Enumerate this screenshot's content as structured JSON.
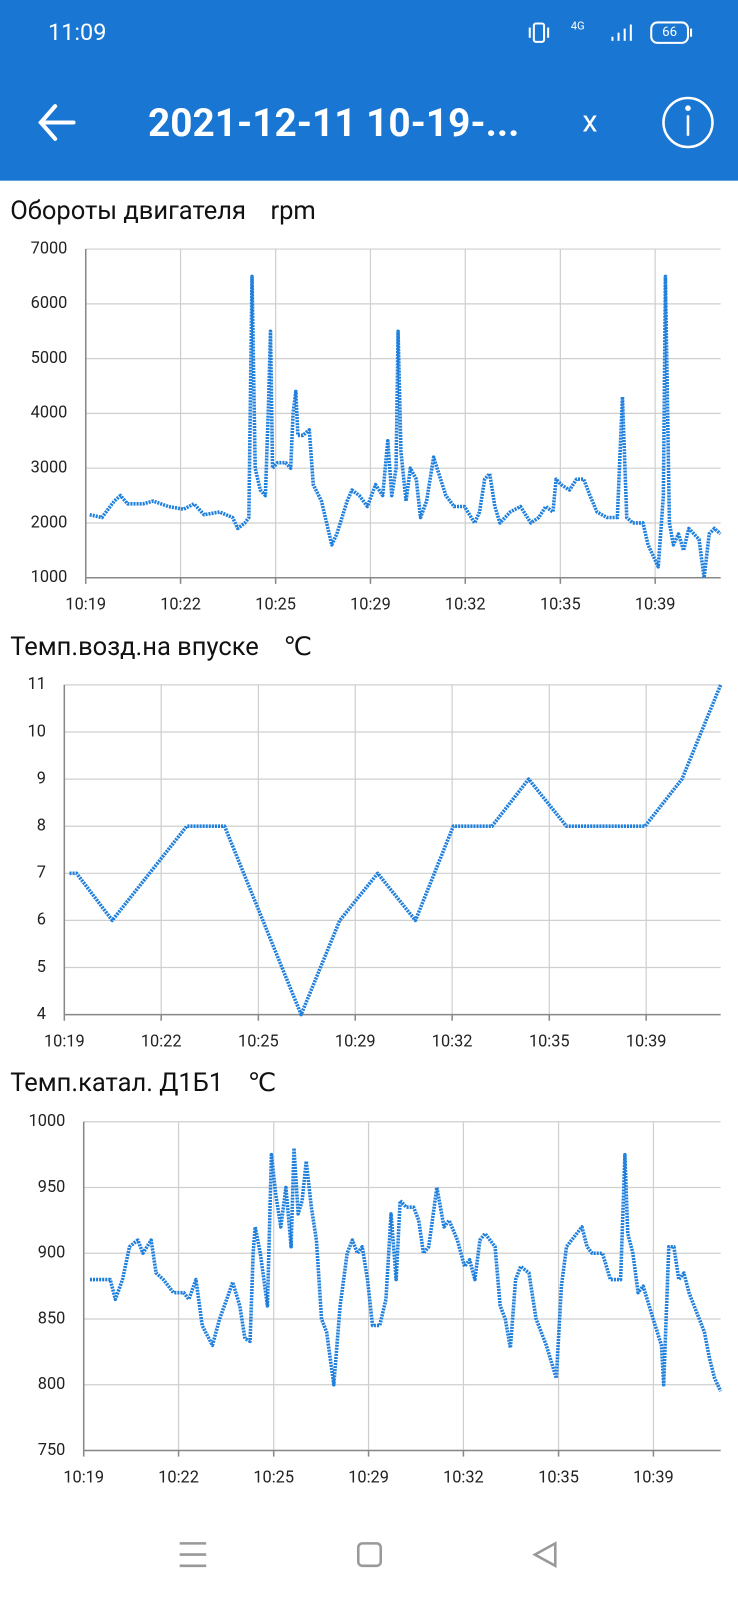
{
  "status_bar": {
    "time": "11:09",
    "network": "4G",
    "battery": "66"
  },
  "header": {
    "title": "2021-12-11 10-19-...",
    "close": "x"
  },
  "chart_data": [
    {
      "type": "line",
      "title": "Обороты двигателя",
      "unit": "rpm",
      "color": "#1e7fdc",
      "grid": true,
      "x": [
        619.14,
        619.57,
        620.0,
        620.22,
        620.47,
        621.01,
        621.37,
        621.9,
        622.44,
        622.8,
        623.16,
        623.7,
        624.16,
        624.34,
        624.59,
        624.73,
        624.84,
        624.95,
        625.13,
        625.31,
        625.42,
        625.49,
        625.56,
        625.74,
        626.02,
        626.2,
        626.28,
        626.38,
        626.45,
        626.63,
        626.85,
        626.99,
        627.28,
        627.46,
        627.64,
        627.82,
        628.18,
        628.35,
        628.61,
        628.89,
        629.18,
        629.43,
        629.61,
        629.75,
        629.9,
        629.97,
        630.07,
        630.25,
        630.4,
        630.61,
        630.76,
        630.97,
        631.22,
        631.4,
        631.65,
        631.94,
        632.3,
        632.66,
        632.83,
        633.01,
        633.19,
        633.37,
        633.55,
        633.91,
        634.27,
        634.63,
        634.91,
        635.16,
        635.41,
        635.52,
        635.7,
        635.99,
        636.24,
        636.49,
        636.71,
        636.96,
        637.31,
        637.67,
        637.85,
        638.0,
        638.21,
        638.57,
        638.75,
        638.93,
        639.11,
        639.29,
        639.36,
        639.5,
        639.64,
        639.82,
        640.0,
        640.18,
        640.36,
        640.54,
        640.72,
        640.9,
        641.08,
        641.29
      ],
      "values": [
        2150,
        2100,
        2400,
        2500,
        2350,
        2350,
        2400,
        2300,
        2250,
        2350,
        2150,
        2200,
        2100,
        1900,
        2000,
        2100,
        6500,
        3000,
        2600,
        2500,
        4200,
        5500,
        3000,
        3100,
        3100,
        3000,
        4000,
        4400,
        3600,
        3600,
        3700,
        2700,
        2400,
        2000,
        1600,
        1800,
        2400,
        2600,
        2500,
        2300,
        2700,
        2500,
        3500,
        2500,
        3000,
        5500,
        3300,
        2400,
        3000,
        2800,
        2100,
        2400,
        3200,
        2900,
        2500,
        2300,
        2300,
        2000,
        2200,
        2800,
        2900,
        2300,
        2000,
        2200,
        2300,
        2000,
        2100,
        2300,
        2200,
        2800,
        2700,
        2600,
        2800,
        2800,
        2500,
        2200,
        2100,
        2100,
        4300,
        2100,
        2000,
        2000,
        1600,
        1400,
        1200,
        2500,
        6500,
        2000,
        1600,
        1800,
        1500,
        1900,
        1800,
        1700,
        1000,
        1800,
        1900,
        1800
      ],
      "xlim": [
        619,
        641.3
      ],
      "xticks": [
        {
          "value": 619,
          "label": "10:19"
        },
        {
          "value": 622.33,
          "label": "10:22"
        },
        {
          "value": 625.67,
          "label": "10:25"
        },
        {
          "value": 629,
          "label": "10:29"
        },
        {
          "value": 632.33,
          "label": "10:32"
        },
        {
          "value": 635.67,
          "label": "10:35"
        },
        {
          "value": 639,
          "label": "10:39"
        }
      ],
      "ylim": [
        1000,
        7000
      ],
      "yticks": [
        1000,
        2000,
        3000,
        4000,
        5000,
        6000,
        7000
      ]
    },
    {
      "type": "line",
      "title": "Темп.возд.на впуске",
      "unit": "℃",
      "color": "#1e7fdc",
      "grid": true,
      "x": [
        619.18,
        619.42,
        620.65,
        623.21,
        624.51,
        627.14,
        628.47,
        629.77,
        631.07,
        632.37,
        633.7,
        634.96,
        636.26,
        638.96,
        640.23,
        641.56
      ],
      "values": [
        7,
        7,
        6,
        8,
        8,
        4,
        6,
        7,
        6,
        8,
        8,
        9,
        8,
        8,
        9,
        11
      ],
      "xlim": [
        619,
        641.56
      ],
      "xticks": [
        {
          "value": 619,
          "label": "10:19"
        },
        {
          "value": 622.33,
          "label": "10:22"
        },
        {
          "value": 625.67,
          "label": "10:25"
        },
        {
          "value": 629,
          "label": "10:29"
        },
        {
          "value": 632.33,
          "label": "10:32"
        },
        {
          "value": 635.67,
          "label": "10:35"
        },
        {
          "value": 639,
          "label": "10:39"
        }
      ],
      "ylim": [
        4,
        11
      ],
      "yticks": [
        4,
        5,
        6,
        7,
        8,
        9,
        10,
        11
      ]
    },
    {
      "type": "line",
      "title": "Темп.катал. Д1Б1",
      "unit": "℃",
      "color": "#1e7fdc",
      "grid": true,
      "x": [
        619.22,
        619.93,
        620.11,
        620.36,
        620.61,
        620.9,
        621.08,
        621.37,
        621.54,
        621.8,
        622.15,
        622.51,
        622.69,
        622.94,
        623.16,
        623.52,
        623.77,
        624.02,
        624.23,
        624.48,
        624.66,
        624.84,
        624.95,
        625.02,
        625.2,
        625.45,
        625.59,
        625.74,
        625.92,
        626.1,
        626.28,
        626.38,
        626.53,
        626.67,
        626.81,
        626.99,
        627.17,
        627.35,
        627.53,
        627.78,
        628.0,
        628.25,
        628.43,
        628.61,
        628.78,
        628.96,
        629.14,
        629.39,
        629.61,
        629.79,
        629.97,
        630.11,
        630.33,
        630.58,
        630.76,
        630.93,
        631.11,
        631.4,
        631.65,
        631.83,
        632.12,
        632.37,
        632.55,
        632.73,
        632.91,
        633.09,
        633.44,
        633.62,
        633.8,
        633.98,
        634.16,
        634.34,
        634.63,
        634.88,
        635.24,
        635.59,
        635.77,
        635.95,
        636.13,
        636.49,
        636.67,
        636.85,
        637.21,
        637.49,
        637.85,
        638.0,
        638.1,
        638.28,
        638.46,
        638.64,
        638.99,
        639.28,
        639.36,
        639.54,
        639.72,
        639.89,
        640.07,
        640.25,
        640.43,
        640.61,
        640.79,
        640.97,
        641.15,
        641.36
      ],
      "values": [
        880,
        880,
        865,
        880,
        905,
        910,
        900,
        910,
        885,
        880,
        870,
        870,
        865,
        880,
        845,
        830,
        850,
        865,
        878,
        860,
        835,
        833,
        900,
        920,
        900,
        860,
        975,
        945,
        920,
        950,
        905,
        980,
        930,
        940,
        970,
        935,
        910,
        850,
        840,
        800,
        860,
        900,
        910,
        900,
        905,
        880,
        845,
        845,
        865,
        930,
        880,
        940,
        935,
        935,
        925,
        900,
        905,
        950,
        920,
        925,
        910,
        890,
        895,
        880,
        910,
        915,
        905,
        860,
        850,
        828,
        880,
        890,
        885,
        850,
        830,
        805,
        875,
        905,
        910,
        920,
        905,
        900,
        900,
        880,
        880,
        975,
        915,
        900,
        870,
        875,
        850,
        830,
        800,
        905,
        905,
        880,
        885,
        870,
        860,
        850,
        840,
        820,
        805,
        795
      ],
      "xlim": [
        619,
        641.36
      ],
      "xticks": [
        {
          "value": 619,
          "label": "10:19"
        },
        {
          "value": 622.33,
          "label": "10:22"
        },
        {
          "value": 625.67,
          "label": "10:25"
        },
        {
          "value": 629,
          "label": "10:29"
        },
        {
          "value": 632.33,
          "label": "10:32"
        },
        {
          "value": 635.67,
          "label": "10:35"
        },
        {
          "value": 639,
          "label": "10:39"
        }
      ],
      "ylim": [
        750,
        1000
      ],
      "yticks": [
        750,
        800,
        850,
        900,
        950,
        1000
      ]
    }
  ]
}
